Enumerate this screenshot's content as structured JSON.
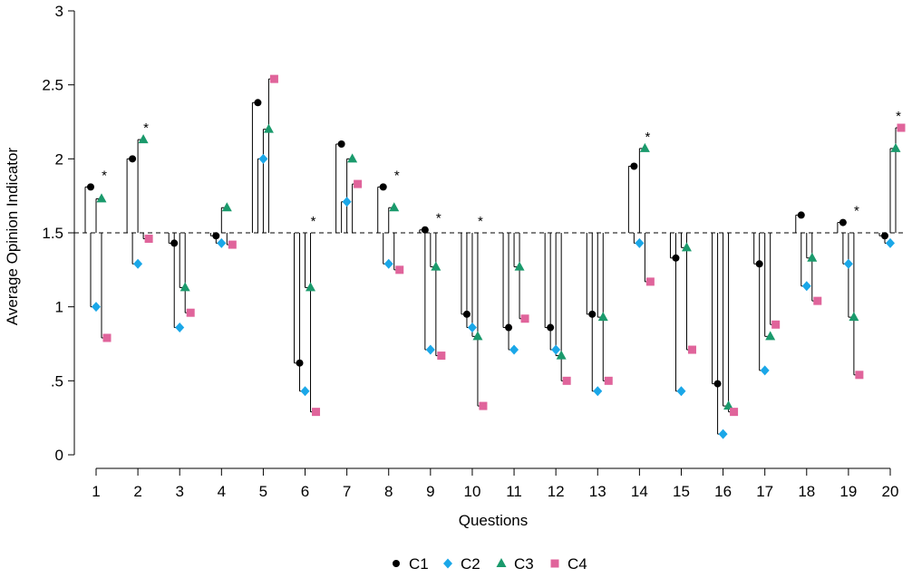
{
  "chart_data": {
    "type": "scatter",
    "style": "stem (lollipop) plot with baseline at reference value",
    "xlabel": "Questions",
    "ylabel": "Average Opinion Indicator",
    "ylim": [
      0,
      3
    ],
    "y_ticks": [
      "0",
      ".5",
      "1",
      "1.5",
      "2",
      "2.5",
      "3"
    ],
    "y_tick_values": [
      0,
      0.5,
      1,
      1.5,
      2,
      2.5,
      3
    ],
    "reference_line": 1.5,
    "categories": [
      "1",
      "2",
      "3",
      "4",
      "5",
      "6",
      "7",
      "8",
      "9",
      "10",
      "11",
      "12",
      "13",
      "14",
      "15",
      "16",
      "17",
      "18",
      "19",
      "20"
    ],
    "series": [
      {
        "name": "C1",
        "color": "#000000",
        "marker": "circle",
        "values": [
          1.81,
          2.0,
          1.43,
          1.48,
          2.38,
          0.62,
          2.1,
          1.81,
          1.52,
          0.95,
          0.86,
          0.86,
          0.95,
          1.95,
          1.33,
          0.48,
          1.29,
          1.62,
          1.57,
          1.48
        ]
      },
      {
        "name": "C2",
        "color": "#1aa7e8",
        "marker": "diamond",
        "values": [
          1.0,
          1.29,
          0.86,
          1.43,
          2.0,
          0.43,
          1.71,
          1.29,
          0.71,
          0.86,
          0.71,
          0.71,
          0.43,
          1.43,
          0.43,
          0.14,
          0.57,
          1.14,
          1.29,
          1.43
        ]
      },
      {
        "name": "C3",
        "color": "#1a9a6c",
        "marker": "triangle",
        "values": [
          1.73,
          2.13,
          1.13,
          1.67,
          2.2,
          1.13,
          2.0,
          1.67,
          1.27,
          0.8,
          1.27,
          0.67,
          0.93,
          2.07,
          1.4,
          0.33,
          0.8,
          1.33,
          0.93,
          2.07
        ]
      },
      {
        "name": "C4",
        "color": "#e0649b",
        "marker": "square",
        "values": [
          0.79,
          1.46,
          0.96,
          1.42,
          2.54,
          0.29,
          1.83,
          1.25,
          0.67,
          0.33,
          0.92,
          0.5,
          0.5,
          1.17,
          0.71,
          0.29,
          0.88,
          1.04,
          0.54,
          2.21
        ]
      }
    ],
    "significance_mark": "*",
    "significant_questions": [
      "1",
      "2",
      "6",
      "8",
      "9",
      "10",
      "14",
      "19",
      "20"
    ],
    "legend": [
      "C1",
      "C2",
      "C3",
      "C4"
    ],
    "legend_position": "bottom-center"
  }
}
